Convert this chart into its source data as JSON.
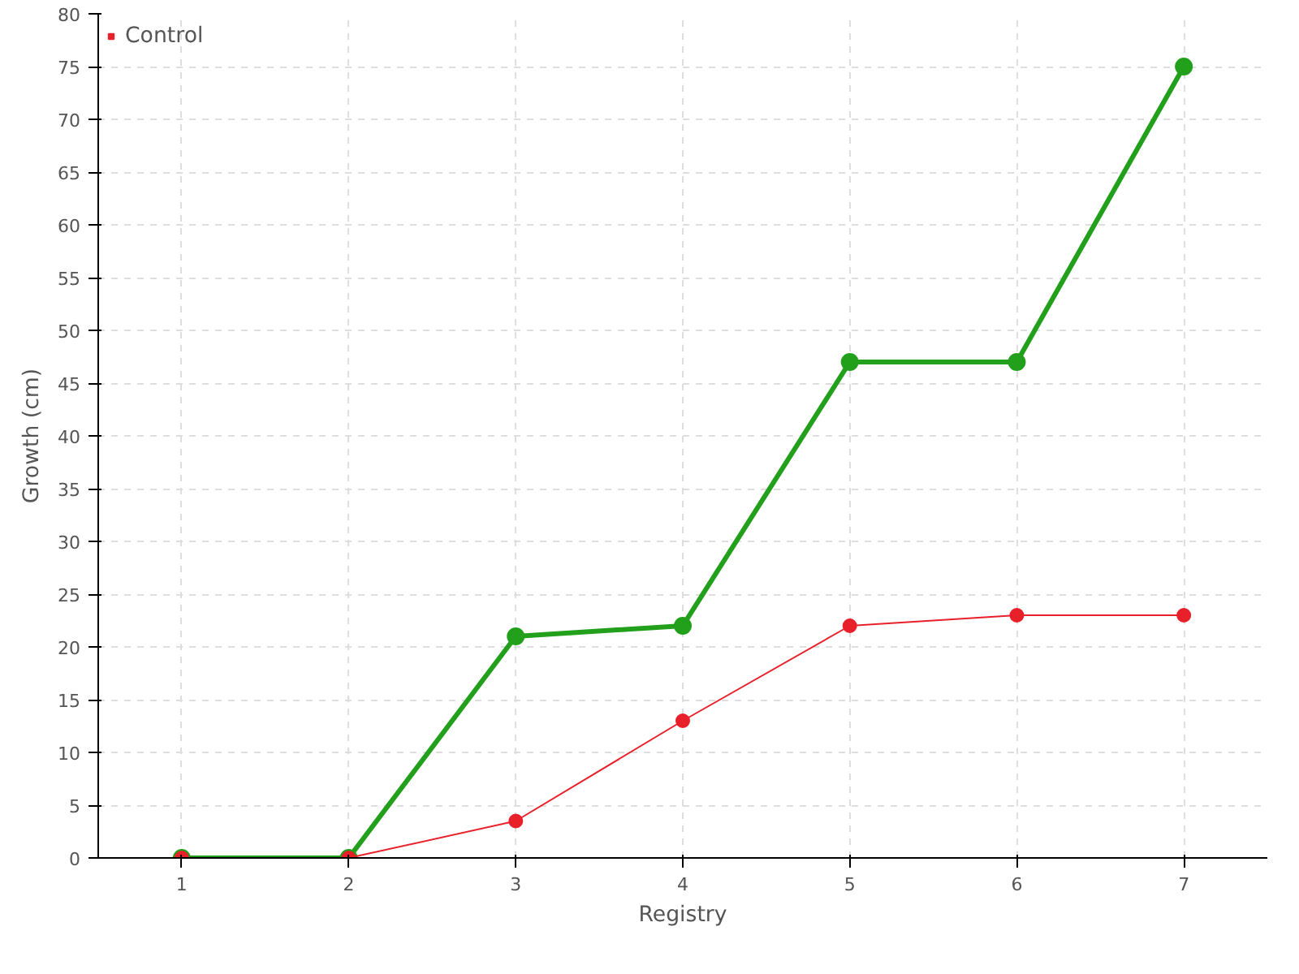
{
  "chart_data": {
    "type": "line",
    "xlabel": "Registry",
    "ylabel": "Growth (cm)",
    "x": [
      1,
      2,
      3,
      4,
      5,
      6,
      7
    ],
    "series": [
      {
        "color": "#22a01c",
        "values": [
          0,
          0,
          21,
          22,
          47,
          47,
          75
        ]
      },
      {
        "name": "Control",
        "color": "#e8202a",
        "values": [
          0,
          0,
          3.5,
          13,
          22,
          23,
          23
        ]
      }
    ],
    "xlim": [
      0.5,
      7.5
    ],
    "xticks": [
      1,
      2,
      3,
      4,
      5,
      6,
      7
    ],
    "ylim": [
      0,
      80
    ],
    "yticks": [
      0,
      5,
      10,
      15,
      20,
      25,
      30,
      35,
      40,
      45,
      50,
      55,
      60,
      65,
      70,
      75,
      80
    ],
    "grid": true,
    "legend": "top left",
    "marker": "circle",
    "line_style": "solid"
  }
}
